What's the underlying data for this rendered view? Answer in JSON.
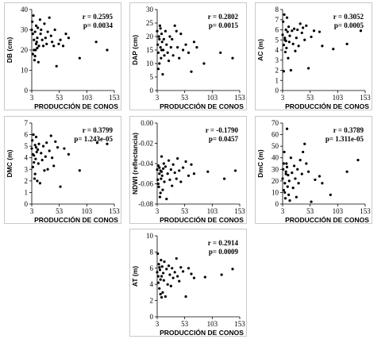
{
  "x_axis_label": "PRODUCCIÓN DE CONOS",
  "chart_data": [
    {
      "type": "scatter",
      "id": "db",
      "ylabel": "DB (cm)",
      "xlabel": "PRODUCCIÓN DE CONOS",
      "xticks": [
        3,
        53,
        103,
        153
      ],
      "xlim": [
        3,
        153
      ],
      "yticks": [
        0,
        10,
        20,
        30,
        40
      ],
      "ylim": [
        0,
        40
      ],
      "stat_r": "r = 0.2595",
      "stat_p": "p= 0.0034",
      "points": [
        [
          3,
          30
        ],
        [
          4,
          34
        ],
        [
          5,
          28
        ],
        [
          6,
          37
        ],
        [
          7,
          25
        ],
        [
          8,
          15
        ],
        [
          9,
          29
        ],
        [
          10,
          20
        ],
        [
          11,
          32
        ],
        [
          12,
          24
        ],
        [
          13,
          26
        ],
        [
          14,
          31
        ],
        [
          15,
          14
        ],
        [
          16,
          22
        ],
        [
          18,
          35
        ],
        [
          19,
          28
        ],
        [
          20,
          30
        ],
        [
          22,
          25
        ],
        [
          24,
          22
        ],
        [
          26,
          33
        ],
        [
          28,
          26
        ],
        [
          30,
          23
        ],
        [
          32,
          29
        ],
        [
          35,
          36
        ],
        [
          38,
          27
        ],
        [
          40,
          24
        ],
        [
          43,
          22
        ],
        [
          45,
          30
        ],
        [
          48,
          12
        ],
        [
          52,
          23
        ],
        [
          55,
          25
        ],
        [
          60,
          22
        ],
        [
          65,
          28
        ],
        [
          70,
          26
        ],
        [
          90,
          16
        ],
        [
          120,
          24
        ],
        [
          140,
          20
        ],
        [
          5,
          18
        ],
        [
          7,
          20
        ],
        [
          9,
          17
        ],
        [
          11,
          23
        ],
        [
          13,
          21
        ]
      ]
    },
    {
      "type": "scatter",
      "id": "dap",
      "ylabel": "DAP (cm)",
      "xlabel": "PRODUCCIÓN DE CONOS",
      "xticks": [
        3,
        53,
        103,
        153
      ],
      "xlim": [
        3,
        153
      ],
      "yticks": [
        0,
        5,
        10,
        15,
        20,
        25,
        30
      ],
      "ylim": [
        0,
        30
      ],
      "stat_r": "r = 0.2802",
      "stat_p": "p= 0.0015",
      "points": [
        [
          3,
          22
        ],
        [
          4,
          17
        ],
        [
          5,
          14
        ],
        [
          6,
          20
        ],
        [
          7,
          10
        ],
        [
          8,
          24
        ],
        [
          9,
          16
        ],
        [
          10,
          12
        ],
        [
          11,
          21
        ],
        [
          12,
          18
        ],
        [
          13,
          6
        ],
        [
          14,
          15
        ],
        [
          15,
          19
        ],
        [
          16,
          13
        ],
        [
          18,
          22
        ],
        [
          20,
          17
        ],
        [
          22,
          14
        ],
        [
          24,
          11
        ],
        [
          26,
          20
        ],
        [
          28,
          16
        ],
        [
          30,
          19
        ],
        [
          32,
          13
        ],
        [
          35,
          24
        ],
        [
          38,
          22
        ],
        [
          40,
          16
        ],
        [
          43,
          12
        ],
        [
          46,
          21
        ],
        [
          50,
          15
        ],
        [
          55,
          17
        ],
        [
          60,
          14
        ],
        [
          65,
          7
        ],
        [
          70,
          18
        ],
        [
          75,
          16
        ],
        [
          88,
          10
        ],
        [
          118,
          14
        ],
        [
          140,
          12
        ],
        [
          5,
          8
        ],
        [
          7,
          19
        ],
        [
          9,
          23
        ],
        [
          11,
          15
        ]
      ]
    },
    {
      "type": "scatter",
      "id": "ac",
      "ylabel": "AC (m)",
      "xlabel": "PRODUCCIÓN DE CONOS",
      "xticks": [
        3,
        53,
        103,
        153
      ],
      "xlim": [
        3,
        153
      ],
      "yticks": [
        0,
        1,
        2,
        3,
        4,
        5,
        6,
        7,
        8
      ],
      "ylim": [
        0,
        8
      ],
      "stat_r": "r = 0.3052",
      "stat_p": "p= 0.0005",
      "points": [
        [
          3,
          5.5
        ],
        [
          4,
          6.8
        ],
        [
          5,
          4.5
        ],
        [
          6,
          7.5
        ],
        [
          7,
          5.2
        ],
        [
          8,
          3.8
        ],
        [
          9,
          6.0
        ],
        [
          10,
          4.2
        ],
        [
          11,
          7.2
        ],
        [
          12,
          5.8
        ],
        [
          13,
          3.2
        ],
        [
          14,
          6.3
        ],
        [
          15,
          4.8
        ],
        [
          16,
          5.4
        ],
        [
          18,
          2.0
        ],
        [
          20,
          5.9
        ],
        [
          22,
          4.6
        ],
        [
          24,
          6.1
        ],
        [
          26,
          3.9
        ],
        [
          28,
          5.2
        ],
        [
          30,
          6.0
        ],
        [
          32,
          4.4
        ],
        [
          35,
          6.6
        ],
        [
          38,
          5.7
        ],
        [
          40,
          6.2
        ],
        [
          43,
          5.0
        ],
        [
          46,
          6.4
        ],
        [
          50,
          2.2
        ],
        [
          55,
          5.3
        ],
        [
          60,
          5.9
        ],
        [
          70,
          5.8
        ],
        [
          75,
          4.4
        ],
        [
          95,
          4.1
        ],
        [
          120,
          4.6
        ],
        [
          145,
          5.9
        ],
        [
          5,
          1.9
        ],
        [
          7,
          5.0
        ],
        [
          9,
          4.9
        ]
      ]
    },
    {
      "type": "scatter",
      "id": "dmc",
      "ylabel": "DMC (m)",
      "xlabel": "PRODUCCIÓN DE CONOS",
      "xticks": [
        3,
        53,
        103,
        153
      ],
      "xlim": [
        3,
        153
      ],
      "yticks": [
        0,
        1,
        2,
        3,
        4,
        5,
        6,
        7
      ],
      "ylim": [
        0,
        7
      ],
      "stat_r": "r = 0.3799",
      "stat_p": "p= 1.243e-05",
      "points": [
        [
          3,
          4.8
        ],
        [
          4,
          5.5
        ],
        [
          5,
          3.2
        ],
        [
          6,
          6.0
        ],
        [
          7,
          4.2
        ],
        [
          8,
          2.2
        ],
        [
          9,
          5.1
        ],
        [
          10,
          3.9
        ],
        [
          11,
          5.8
        ],
        [
          12,
          4.5
        ],
        [
          13,
          2.0
        ],
        [
          14,
          4.7
        ],
        [
          15,
          3.5
        ],
        [
          16,
          5.2
        ],
        [
          18,
          1.8
        ],
        [
          20,
          4.4
        ],
        [
          22,
          3.8
        ],
        [
          24,
          5.0
        ],
        [
          26,
          2.9
        ],
        [
          28,
          4.1
        ],
        [
          30,
          5.3
        ],
        [
          32,
          3.0
        ],
        [
          35,
          4.6
        ],
        [
          38,
          5.9
        ],
        [
          40,
          4.0
        ],
        [
          43,
          3.3
        ],
        [
          46,
          5.4
        ],
        [
          50,
          4.9
        ],
        [
          55,
          1.5
        ],
        [
          62,
          4.8
        ],
        [
          70,
          4.3
        ],
        [
          90,
          2.9
        ],
        [
          122,
          5.3
        ],
        [
          140,
          5.2
        ],
        [
          5,
          4.3
        ],
        [
          7,
          3.6
        ],
        [
          9,
          2.6
        ],
        [
          11,
          4.9
        ]
      ]
    },
    {
      "type": "scatter",
      "id": "ndwi",
      "ylabel": "NDWI (reflectancia)",
      "xlabel": "PRODUCCIÓN DE CONOS",
      "xticks": [
        3,
        53,
        103,
        153
      ],
      "xlim": [
        3,
        153
      ],
      "yticks": [
        0.0,
        -0.02,
        -0.04,
        -0.06,
        -0.08
      ],
      "ytick_labels": [
        "0.00",
        "-0.02",
        "-0.04",
        "-0.06",
        "-0.08"
      ],
      "ylim": [
        -0.08,
        0
      ],
      "stat_r": "r = -0.1790",
      "stat_p": "p= 0.0457",
      "points": [
        [
          3,
          -0.046
        ],
        [
          4,
          -0.056
        ],
        [
          5,
          -0.042
        ],
        [
          6,
          -0.063
        ],
        [
          7,
          -0.05
        ],
        [
          8,
          -0.073
        ],
        [
          9,
          -0.047
        ],
        [
          10,
          -0.055
        ],
        [
          11,
          -0.033
        ],
        [
          12,
          -0.052
        ],
        [
          13,
          -0.066
        ],
        [
          14,
          -0.045
        ],
        [
          15,
          -0.04
        ],
        [
          16,
          -0.058
        ],
        [
          18,
          -0.043
        ],
        [
          20,
          -0.075
        ],
        [
          22,
          -0.05
        ],
        [
          24,
          -0.037
        ],
        [
          26,
          -0.056
        ],
        [
          28,
          -0.046
        ],
        [
          30,
          -0.062
        ],
        [
          32,
          -0.041
        ],
        [
          35,
          -0.049
        ],
        [
          38,
          -0.055
        ],
        [
          40,
          -0.035
        ],
        [
          43,
          -0.047
        ],
        [
          46,
          -0.058
        ],
        [
          50,
          -0.044
        ],
        [
          55,
          -0.038
        ],
        [
          60,
          -0.052
        ],
        [
          65,
          -0.041
        ],
        [
          70,
          -0.05
        ],
        [
          95,
          -0.048
        ],
        [
          125,
          -0.055
        ],
        [
          145,
          -0.047
        ],
        [
          5,
          -0.06
        ],
        [
          7,
          -0.044
        ],
        [
          9,
          -0.069
        ],
        [
          11,
          -0.048
        ]
      ]
    },
    {
      "type": "scatter",
      "id": "dmcc",
      "ylabel": "DmC (m)",
      "xlabel": "PRODUCCIÓN DE CONOS",
      "xticks": [
        3,
        53,
        103,
        153
      ],
      "xlim": [
        3,
        153
      ],
      "yticks": [
        0,
        10,
        20,
        30,
        40,
        50,
        60,
        70
      ],
      "ylim": [
        0,
        70
      ],
      "stat_r": "r = 0.3789",
      "stat_p": "p= 1.311e-05",
      "points": [
        [
          3,
          22
        ],
        [
          4,
          30
        ],
        [
          5,
          12
        ],
        [
          6,
          45
        ],
        [
          7,
          18
        ],
        [
          8,
          5
        ],
        [
          9,
          28
        ],
        [
          10,
          35
        ],
        [
          11,
          65
        ],
        [
          12,
          15
        ],
        [
          13,
          25
        ],
        [
          14,
          8
        ],
        [
          15,
          20
        ],
        [
          16,
          3
        ],
        [
          18,
          40
        ],
        [
          20,
          27
        ],
        [
          22,
          14
        ],
        [
          24,
          33
        ],
        [
          26,
          22
        ],
        [
          28,
          6
        ],
        [
          30,
          30
        ],
        [
          32,
          18
        ],
        [
          35,
          38
        ],
        [
          38,
          26
        ],
        [
          40,
          45
        ],
        [
          43,
          52
        ],
        [
          46,
          35
        ],
        [
          50,
          28
        ],
        [
          55,
          2
        ],
        [
          62,
          21
        ],
        [
          70,
          24
        ],
        [
          75,
          18
        ],
        [
          90,
          8
        ],
        [
          120,
          28
        ],
        [
          140,
          38
        ],
        [
          5,
          35
        ],
        [
          7,
          10
        ],
        [
          9,
          26
        ],
        [
          11,
          32
        ]
      ]
    },
    {
      "type": "scatter",
      "id": "at",
      "ylabel": "AT (m)",
      "xlabel": "PRODUCCIÓN DE CONOS",
      "xticks": [
        3,
        53,
        103,
        153
      ],
      "xlim": [
        3,
        153
      ],
      "yticks": [
        0,
        2,
        4,
        6,
        8,
        10
      ],
      "ylim": [
        0,
        10
      ],
      "stat_r": "r = 0.2914",
      "stat_p": "p= 0.0009",
      "points": [
        [
          3,
          5.5
        ],
        [
          4,
          7.8
        ],
        [
          5,
          4.2
        ],
        [
          6,
          6.5
        ],
        [
          7,
          3.5
        ],
        [
          8,
          5.8
        ],
        [
          9,
          2.8
        ],
        [
          10,
          7.0
        ],
        [
          11,
          5.0
        ],
        [
          12,
          6.2
        ],
        [
          13,
          3.0
        ],
        [
          14,
          5.4
        ],
        [
          15,
          4.5
        ],
        [
          16,
          6.8
        ],
        [
          18,
          2.5
        ],
        [
          20,
          5.9
        ],
        [
          22,
          4.0
        ],
        [
          24,
          6.3
        ],
        [
          26,
          5.2
        ],
        [
          28,
          3.8
        ],
        [
          30,
          6.0
        ],
        [
          32,
          4.8
        ],
        [
          35,
          5.5
        ],
        [
          38,
          7.2
        ],
        [
          40,
          5.0
        ],
        [
          43,
          4.4
        ],
        [
          46,
          6.1
        ],
        [
          50,
          5.6
        ],
        [
          55,
          2.5
        ],
        [
          60,
          6.0
        ],
        [
          65,
          5.3
        ],
        [
          70,
          4.8
        ],
        [
          90,
          4.9
        ],
        [
          120,
          5.2
        ],
        [
          140,
          5.9
        ],
        [
          5,
          5.0
        ],
        [
          7,
          6.1
        ],
        [
          9,
          4.6
        ],
        [
          11,
          2.4
        ]
      ]
    }
  ]
}
